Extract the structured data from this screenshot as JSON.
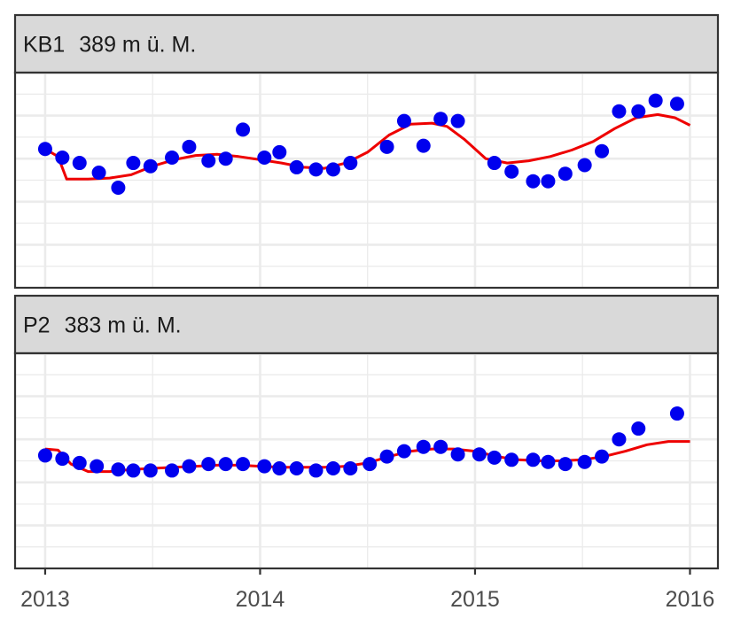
{
  "chart_data": {
    "type": "scatter",
    "x_axis": {
      "ticks": [
        "2013",
        "2014",
        "2015",
        "2016"
      ],
      "range": [
        2012.86,
        2016.13
      ]
    },
    "y_axis": {
      "range": [
        0,
        10
      ]
    },
    "grid": true,
    "colors": {
      "points": "#0000ee",
      "trend": "#ee0000",
      "strip": "#d9d9d9",
      "grid": "#ebebeb"
    },
    "panels": [
      {
        "site": "KB1",
        "elevation_label": "389 m ü. M.",
        "points": [
          [
            2013.0,
            6.45
          ],
          [
            2013.08,
            6.05
          ],
          [
            2013.16,
            5.8
          ],
          [
            2013.25,
            5.35
          ],
          [
            2013.34,
            4.65
          ],
          [
            2013.41,
            5.8
          ],
          [
            2013.49,
            5.65
          ],
          [
            2013.59,
            6.05
          ],
          [
            2013.67,
            6.55
          ],
          [
            2013.76,
            5.9
          ],
          [
            2013.84,
            6.0
          ],
          [
            2013.92,
            7.35
          ],
          [
            2014.02,
            6.05
          ],
          [
            2014.09,
            6.3
          ],
          [
            2014.17,
            5.6
          ],
          [
            2014.26,
            5.5
          ],
          [
            2014.34,
            5.5
          ],
          [
            2014.42,
            5.8
          ],
          [
            2014.59,
            6.55
          ],
          [
            2014.67,
            7.75
          ],
          [
            2014.76,
            6.6
          ],
          [
            2014.84,
            7.85
          ],
          [
            2014.92,
            7.75
          ],
          [
            2015.09,
            5.8
          ],
          [
            2015.17,
            5.4
          ],
          [
            2015.27,
            4.95
          ],
          [
            2015.34,
            4.95
          ],
          [
            2015.42,
            5.3
          ],
          [
            2015.51,
            5.7
          ],
          [
            2015.59,
            6.35
          ],
          [
            2015.67,
            8.2
          ],
          [
            2015.76,
            8.2
          ],
          [
            2015.84,
            8.7
          ],
          [
            2015.94,
            8.55
          ]
        ],
        "trend": [
          [
            2013.0,
            6.45
          ],
          [
            2013.06,
            6.1
          ],
          [
            2013.1,
            5.05
          ],
          [
            2013.2,
            5.05
          ],
          [
            2013.3,
            5.1
          ],
          [
            2013.4,
            5.25
          ],
          [
            2013.5,
            5.65
          ],
          [
            2013.6,
            5.95
          ],
          [
            2013.7,
            6.15
          ],
          [
            2013.8,
            6.2
          ],
          [
            2013.9,
            6.1
          ],
          [
            2014.0,
            5.95
          ],
          [
            2014.1,
            5.8
          ],
          [
            2014.2,
            5.6
          ],
          [
            2014.3,
            5.55
          ],
          [
            2014.4,
            5.8
          ],
          [
            2014.5,
            6.3
          ],
          [
            2014.6,
            7.1
          ],
          [
            2014.7,
            7.6
          ],
          [
            2014.8,
            7.65
          ],
          [
            2014.87,
            7.5
          ],
          [
            2014.95,
            6.9
          ],
          [
            2015.05,
            6.0
          ],
          [
            2015.15,
            5.8
          ],
          [
            2015.25,
            5.9
          ],
          [
            2015.35,
            6.1
          ],
          [
            2015.45,
            6.4
          ],
          [
            2015.55,
            6.8
          ],
          [
            2015.65,
            7.4
          ],
          [
            2015.75,
            7.9
          ],
          [
            2015.85,
            8.05
          ],
          [
            2015.93,
            7.9
          ],
          [
            2016.0,
            7.55
          ]
        ]
      },
      {
        "site": "P2",
        "elevation_label": "383 m ü. M.",
        "points": [
          [
            2013.0,
            5.25
          ],
          [
            2013.08,
            5.1
          ],
          [
            2013.16,
            4.9
          ],
          [
            2013.24,
            4.75
          ],
          [
            2013.34,
            4.6
          ],
          [
            2013.41,
            4.55
          ],
          [
            2013.49,
            4.55
          ],
          [
            2013.59,
            4.55
          ],
          [
            2013.67,
            4.75
          ],
          [
            2013.76,
            4.85
          ],
          [
            2013.84,
            4.85
          ],
          [
            2013.92,
            4.85
          ],
          [
            2014.02,
            4.75
          ],
          [
            2014.09,
            4.65
          ],
          [
            2014.17,
            4.65
          ],
          [
            2014.26,
            4.55
          ],
          [
            2014.34,
            4.65
          ],
          [
            2014.42,
            4.65
          ],
          [
            2014.51,
            4.85
          ],
          [
            2014.59,
            5.2
          ],
          [
            2014.67,
            5.45
          ],
          [
            2014.76,
            5.65
          ],
          [
            2014.84,
            5.65
          ],
          [
            2014.92,
            5.3
          ],
          [
            2015.02,
            5.3
          ],
          [
            2015.09,
            5.15
          ],
          [
            2015.17,
            5.05
          ],
          [
            2015.27,
            5.05
          ],
          [
            2015.34,
            4.95
          ],
          [
            2015.42,
            4.85
          ],
          [
            2015.51,
            4.95
          ],
          [
            2015.59,
            5.2
          ],
          [
            2015.67,
            6.0
          ],
          [
            2015.76,
            6.5
          ],
          [
            2015.94,
            7.2
          ]
        ],
        "trend": [
          [
            2013.0,
            5.55
          ],
          [
            2013.06,
            5.5
          ],
          [
            2013.12,
            4.85
          ],
          [
            2013.2,
            4.5
          ],
          [
            2013.3,
            4.5
          ],
          [
            2013.4,
            4.6
          ],
          [
            2013.5,
            4.65
          ],
          [
            2013.6,
            4.7
          ],
          [
            2013.7,
            4.75
          ],
          [
            2013.8,
            4.8
          ],
          [
            2013.9,
            4.8
          ],
          [
            2014.0,
            4.75
          ],
          [
            2014.1,
            4.7
          ],
          [
            2014.2,
            4.7
          ],
          [
            2014.3,
            4.7
          ],
          [
            2014.4,
            4.75
          ],
          [
            2014.5,
            4.9
          ],
          [
            2014.6,
            5.2
          ],
          [
            2014.7,
            5.45
          ],
          [
            2014.8,
            5.55
          ],
          [
            2014.9,
            5.55
          ],
          [
            2015.0,
            5.45
          ],
          [
            2015.1,
            5.2
          ],
          [
            2015.2,
            5.05
          ],
          [
            2015.3,
            5.0
          ],
          [
            2015.4,
            5.0
          ],
          [
            2015.5,
            5.05
          ],
          [
            2015.6,
            5.2
          ],
          [
            2015.7,
            5.45
          ],
          [
            2015.8,
            5.75
          ],
          [
            2015.9,
            5.9
          ],
          [
            2016.0,
            5.9
          ]
        ]
      }
    ]
  }
}
